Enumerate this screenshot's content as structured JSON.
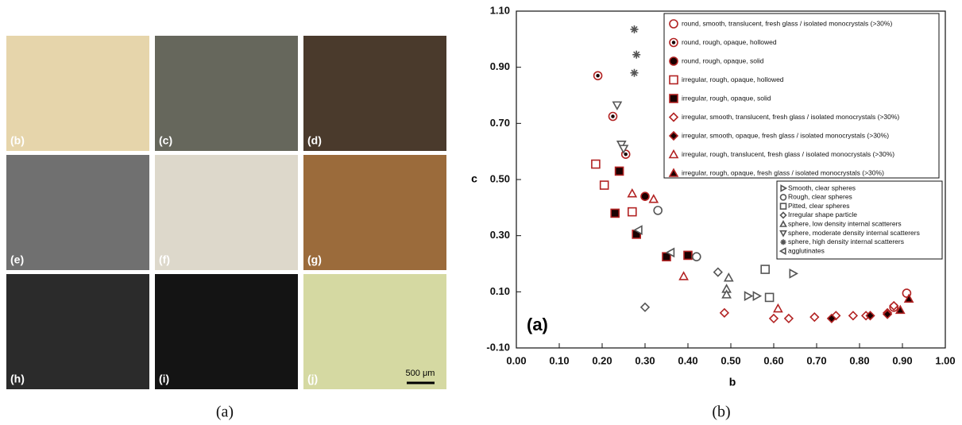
{
  "photos": {
    "labels": [
      "(b)",
      "(c)",
      "(d)",
      "(e)",
      "(f)",
      "(g)",
      "(h)",
      "(i)",
      "(j)"
    ],
    "scale_bar": "500 μm",
    "caption": "(a)"
  },
  "chart_caption": "(b)",
  "chart_data": {
    "type": "scatter",
    "panel_label": "(a)",
    "x_label": "b",
    "y_label": "c",
    "xlim": [
      0,
      1
    ],
    "ylim": [
      -0.1,
      1.1
    ],
    "xticks": [
      {
        "value": 0,
        "label": "0.00"
      },
      {
        "value": 0.1,
        "label": "0.10"
      },
      {
        "value": 0.2,
        "label": "0.20"
      },
      {
        "value": 0.3,
        "label": "0.30"
      },
      {
        "value": 0.4,
        "label": "0.40"
      },
      {
        "value": 0.5,
        "label": "0.50"
      },
      {
        "value": 0.6,
        "label": "0.60"
      },
      {
        "value": 0.7,
        "label": "0.70"
      },
      {
        "value": 0.8,
        "label": "0.80"
      },
      {
        "value": 0.9,
        "label": "0.90"
      },
      {
        "value": 1,
        "label": "1.00"
      }
    ],
    "yticks": [
      {
        "value": -0.1,
        "label": "-0.10"
      },
      {
        "value": 0.1,
        "label": "0.10"
      },
      {
        "value": 0.3,
        "label": "0.30"
      },
      {
        "value": 0.5,
        "label": "0.50"
      },
      {
        "value": 0.7,
        "label": "0.70"
      },
      {
        "value": 0.9,
        "label": "0.90"
      },
      {
        "value": 1.1,
        "label": "1.10"
      }
    ],
    "series": [
      {
        "name": "round, smooth, translucent, fresh glass / isolated monocrystals (>30%)",
        "color": "#b22222",
        "marker": "circle",
        "fill": "none",
        "x": [
          0.88,
          0.91
        ],
        "values": [
          0.045,
          0.095
        ]
      },
      {
        "name": "round, rough, opaque, hollowed",
        "color": "#b22222",
        "marker": "circle",
        "fill": "dot",
        "x": [
          0.19,
          0.225,
          0.255
        ],
        "values": [
          0.87,
          0.725,
          0.59
        ]
      },
      {
        "name": "round, rough, opaque, solid",
        "color": "#b22222",
        "marker": "circle",
        "fill": "solid",
        "x": [
          0.3
        ],
        "values": [
          0.44
        ]
      },
      {
        "name": "irregular, rough, opaque, hollowed",
        "color": "#b22222",
        "marker": "square",
        "fill": "none",
        "x": [
          0.185,
          0.205,
          0.27
        ],
        "values": [
          0.555,
          0.48,
          0.385
        ]
      },
      {
        "name": "irregular, rough, opaque, solid",
        "color": "#b22222",
        "marker": "square",
        "fill": "solid",
        "x": [
          0.24,
          0.23,
          0.28,
          0.35,
          0.4
        ],
        "values": [
          0.53,
          0.38,
          0.305,
          0.225,
          0.23
        ]
      },
      {
        "name": "irregular, smooth, translucent, fresh glass / isolated monocrystals (>30%)",
        "color": "#b22222",
        "marker": "diamond",
        "fill": "none",
        "x": [
          0.485,
          0.6,
          0.635,
          0.695,
          0.745,
          0.785,
          0.815,
          0.865,
          0.88
        ],
        "values": [
          0.025,
          0.005,
          0.005,
          0.01,
          0.015,
          0.015,
          0.015,
          0.025,
          0.05
        ]
      },
      {
        "name": "irregular, smooth, opaque, fresh glass / isolated monocrystals (>30%)",
        "color": "#b22222",
        "marker": "diamond",
        "fill": "solid",
        "x": [
          0.735,
          0.825,
          0.865
        ],
        "values": [
          0.005,
          0.015,
          0.02
        ]
      },
      {
        "name": "irregular, rough, translucent, fresh glass / isolated monocrystals (>30%)",
        "color": "#b22222",
        "marker": "triangle-up",
        "fill": "none",
        "x": [
          0.27,
          0.32,
          0.39,
          0.61
        ],
        "values": [
          0.45,
          0.43,
          0.155,
          0.04
        ]
      },
      {
        "name": "irregular, rough, opaque, fresh glass / isolated monocrystals (>30%)",
        "color": "#b22222",
        "marker": "triangle-up",
        "fill": "solid",
        "x": [
          0.895,
          0.915
        ],
        "values": [
          0.035,
          0.075
        ]
      },
      {
        "name": "Smooth, clear spheres",
        "color": "#555555",
        "marker": "triangle-right",
        "fill": "none",
        "x": [
          0.54,
          0.56,
          0.645
        ],
        "values": [
          0.085,
          0.085,
          0.165
        ]
      },
      {
        "name": "Rough, clear spheres",
        "color": "#555555",
        "marker": "circle",
        "fill": "none",
        "x": [
          0.33,
          0.42
        ],
        "values": [
          0.39,
          0.225
        ]
      },
      {
        "name": "Pitted, clear spheres",
        "color": "#555555",
        "marker": "square",
        "fill": "none",
        "x": [
          0.58,
          0.59
        ],
        "values": [
          0.18,
          0.08
        ]
      },
      {
        "name": "Irregular shape particle",
        "color": "#555555",
        "marker": "diamond",
        "fill": "none",
        "x": [
          0.3,
          0.47
        ],
        "values": [
          0.045,
          0.17
        ]
      },
      {
        "name": "sphere, low density internal scatterers",
        "color": "#555555",
        "marker": "triangle-up",
        "fill": "none",
        "x": [
          0.495,
          0.49,
          0.49
        ],
        "values": [
          0.15,
          0.11,
          0.09
        ]
      },
      {
        "name": "sphere, moderate density internal scatterers",
        "color": "#555555",
        "marker": "triangle-down",
        "fill": "none",
        "x": [
          0.235,
          0.245,
          0.25
        ],
        "values": [
          0.765,
          0.625,
          0.61
        ]
      },
      {
        "name": "sphere, high density internal scatterers",
        "color": "#555555",
        "marker": "asterisk",
        "fill": "none",
        "x": [
          0.275,
          0.28,
          0.275
        ],
        "values": [
          1.035,
          0.945,
          0.88
        ]
      },
      {
        "name": "agglutinates",
        "color": "#555555",
        "marker": "triangle-left",
        "fill": "none",
        "x": [
          0.285,
          0.36
        ],
        "values": [
          0.32,
          0.24
        ]
      }
    ]
  }
}
